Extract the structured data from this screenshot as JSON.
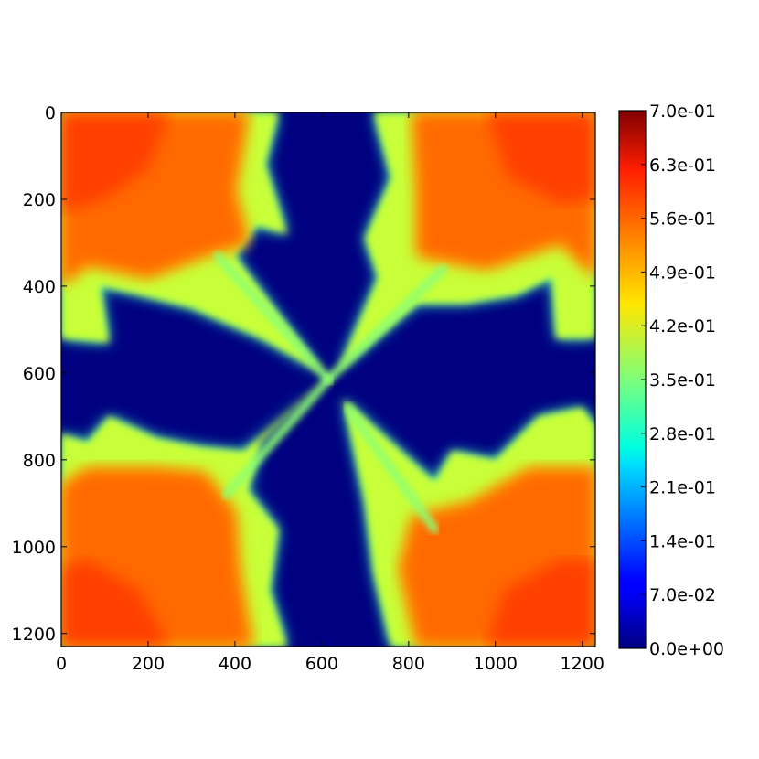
{
  "chart_data": {
    "type": "heatmap",
    "title": "",
    "xlabel": "",
    "ylabel": "",
    "xlim": [
      0,
      1230
    ],
    "ylim": [
      1230,
      0
    ],
    "x_ticks": [
      0,
      200,
      400,
      600,
      800,
      1000,
      1200
    ],
    "y_ticks": [
      0,
      200,
      400,
      600,
      800,
      1000,
      1200
    ],
    "x_tick_labels": [
      "0",
      "200",
      "400",
      "600",
      "800",
      "1000",
      "1200"
    ],
    "y_tick_labels": [
      "0",
      "200",
      "400",
      "600",
      "800",
      "1000",
      "1200"
    ],
    "colormap": "jet",
    "vmin": 0.0,
    "vmax": 0.7,
    "colorbar_ticks": [
      0.0,
      0.07,
      0.14,
      0.21,
      0.28,
      0.35,
      0.42,
      0.49,
      0.56,
      0.63,
      0.7
    ],
    "colorbar_tick_labels": [
      "0.0e+00",
      "7.0e-02",
      "1.4e-01",
      "2.1e-01",
      "2.8e-01",
      "3.5e-01",
      "4.2e-01",
      "4.9e-01",
      "5.6e-01",
      "6.3e-01",
      "7.0e-01"
    ],
    "grid": false,
    "legend": "colorbar right",
    "field": {
      "center": [
        615,
        615
      ],
      "corner_value": 0.55,
      "fringe_value": 0.4,
      "background_value": 0.0
    }
  }
}
